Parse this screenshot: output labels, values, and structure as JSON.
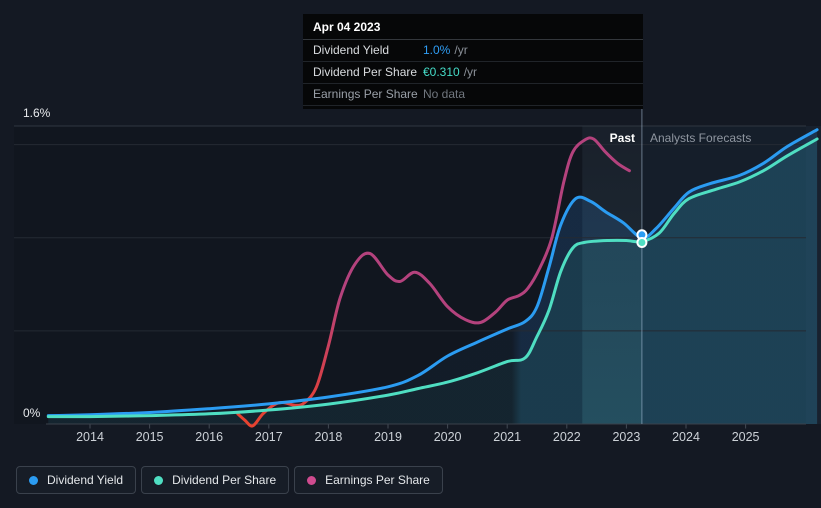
{
  "tooltip": {
    "date": "Apr 04 2023",
    "rows": [
      {
        "label": "Dividend Yield",
        "value": "1.0%",
        "suffix": "/yr",
        "value_color": "#2f9df4",
        "muted": false
      },
      {
        "label": "Dividend Per Share",
        "value": "€0.310",
        "suffix": "/yr",
        "value_color": "#45dcc8",
        "muted": false
      },
      {
        "label": "Earnings Per Share",
        "value": "No data",
        "suffix": "",
        "value_color": "#71777f",
        "muted": true
      }
    ]
  },
  "chart": {
    "y_axis": {
      "top_label": "1.6%",
      "zero_label": "0%"
    },
    "region_labels": {
      "past": "Past",
      "forecast": "Analysts Forecasts"
    }
  },
  "legend": [
    {
      "label": "Dividend Yield",
      "color": "#2b9cf2"
    },
    {
      "label": "Dividend Per Share",
      "color": "#4fdec2"
    },
    {
      "label": "Earnings Per Share",
      "color": "#cf4b8f"
    }
  ],
  "chart_data": {
    "type": "line",
    "title": "Dividend history and forecast",
    "y_unit": "percent",
    "y_range": [
      0,
      1.6
    ],
    "x_range": [
      2013.3,
      2026.3
    ],
    "gridlines_y": [
      0,
      0.5,
      1.0,
      1.5,
      1.6
    ],
    "x_ticks": [
      2014,
      2015,
      2016,
      2017,
      2018,
      2019,
      2020,
      2021,
      2022,
      2023,
      2024,
      2025
    ],
    "past_band": [
      2022.26,
      2023.26
    ],
    "divider_x": 2023.26,
    "legend_position": "bottom-left",
    "series": [
      {
        "name": "Dividend Yield",
        "color": "#2b9cf2",
        "points": [
          [
            2013.3,
            0.045
          ],
          [
            2014,
            0.05
          ],
          [
            2015,
            0.062
          ],
          [
            2016,
            0.082
          ],
          [
            2017,
            0.108
          ],
          [
            2018,
            0.145
          ],
          [
            2019,
            0.2
          ],
          [
            2019.5,
            0.26
          ],
          [
            2020,
            0.365
          ],
          [
            2020.5,
            0.44
          ],
          [
            2021,
            0.51
          ],
          [
            2021.3,
            0.55
          ],
          [
            2021.5,
            0.63
          ],
          [
            2021.7,
            0.84
          ],
          [
            2021.9,
            1.07
          ],
          [
            2022.15,
            1.21
          ],
          [
            2022.4,
            1.195
          ],
          [
            2022.65,
            1.14
          ],
          [
            2022.95,
            1.08
          ],
          [
            2023.26,
            1.0
          ],
          [
            2023.5,
            1.05
          ],
          [
            2023.8,
            1.16
          ],
          [
            2024.05,
            1.245
          ],
          [
            2024.4,
            1.29
          ],
          [
            2024.9,
            1.335
          ],
          [
            2025.3,
            1.4
          ],
          [
            2025.7,
            1.49
          ],
          [
            2026.2,
            1.58
          ]
        ]
      },
      {
        "name": "Dividend Per Share",
        "color": "#4fdec2",
        "points": [
          [
            2013.3,
            0.04
          ],
          [
            2014,
            0.04
          ],
          [
            2015,
            0.045
          ],
          [
            2016,
            0.055
          ],
          [
            2017,
            0.075
          ],
          [
            2018,
            0.107
          ],
          [
            2019,
            0.155
          ],
          [
            2019.5,
            0.19
          ],
          [
            2020,
            0.225
          ],
          [
            2020.5,
            0.275
          ],
          [
            2021,
            0.335
          ],
          [
            2021.3,
            0.355
          ],
          [
            2021.5,
            0.47
          ],
          [
            2021.7,
            0.61
          ],
          [
            2021.9,
            0.82
          ],
          [
            2022.1,
            0.945
          ],
          [
            2022.3,
            0.975
          ],
          [
            2022.7,
            0.985
          ],
          [
            2023,
            0.985
          ],
          [
            2023.26,
            0.98
          ],
          [
            2023.55,
            1.025
          ],
          [
            2023.8,
            1.13
          ],
          [
            2024.05,
            1.21
          ],
          [
            2024.5,
            1.26
          ],
          [
            2024.9,
            1.3
          ],
          [
            2025.3,
            1.36
          ],
          [
            2025.7,
            1.44
          ],
          [
            2026.2,
            1.53
          ]
        ]
      },
      {
        "name": "Earnings Per Share",
        "color": "#b4427d",
        "color_start": "#e8432e",
        "points": [
          [
            2016.48,
            0.054
          ],
          [
            2016.6,
            0.02
          ],
          [
            2016.73,
            -0.01
          ],
          [
            2016.9,
            0.054
          ],
          [
            2017.1,
            0.105
          ],
          [
            2017.25,
            0.115
          ],
          [
            2017.45,
            0.1
          ],
          [
            2017.6,
            0.115
          ],
          [
            2017.8,
            0.2
          ],
          [
            2018,
            0.42
          ],
          [
            2018.2,
            0.68
          ],
          [
            2018.45,
            0.86
          ],
          [
            2018.7,
            0.915
          ],
          [
            2019,
            0.8
          ],
          [
            2019.2,
            0.765
          ],
          [
            2019.45,
            0.815
          ],
          [
            2019.7,
            0.755
          ],
          [
            2020,
            0.63
          ],
          [
            2020.3,
            0.56
          ],
          [
            2020.55,
            0.545
          ],
          [
            2020.8,
            0.6
          ],
          [
            2021,
            0.665
          ],
          [
            2021.2,
            0.69
          ],
          [
            2021.35,
            0.73
          ],
          [
            2021.55,
            0.84
          ],
          [
            2021.75,
            1.0
          ],
          [
            2021.95,
            1.3
          ],
          [
            2022.1,
            1.46
          ],
          [
            2022.3,
            1.525
          ],
          [
            2022.45,
            1.53
          ],
          [
            2022.65,
            1.46
          ],
          [
            2022.85,
            1.4
          ],
          [
            2023.05,
            1.36
          ]
        ]
      }
    ],
    "markers": [
      {
        "series": "Dividend Yield",
        "x": 2023.26,
        "y": 1.0
      },
      {
        "series": "Dividend Per Share",
        "x": 2023.26,
        "y": 0.98
      }
    ]
  }
}
